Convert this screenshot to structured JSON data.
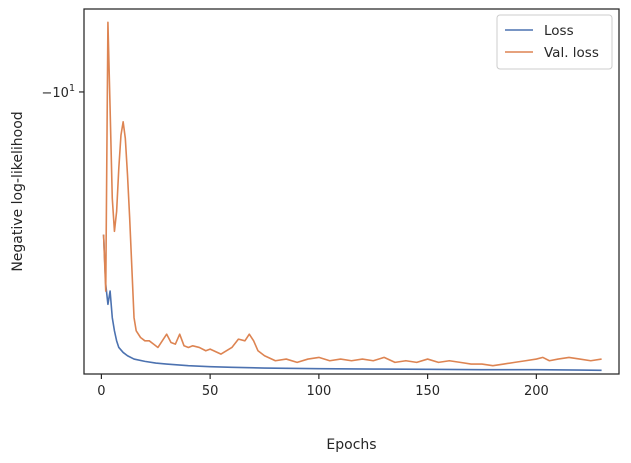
{
  "chart_data": {
    "type": "line",
    "xlabel": "Epochs",
    "ylabel": "Negative log-likelihood",
    "xlim": [
      -8,
      238
    ],
    "ylim": [
      -18.5,
      -7.5
    ],
    "y_scale": "symlog",
    "grid": false,
    "legend_position": "top-right",
    "x_ticks": [
      {
        "value": 0,
        "label": "0"
      },
      {
        "value": 50,
        "label": "50"
      },
      {
        "value": 100,
        "label": "100"
      },
      {
        "value": 150,
        "label": "150"
      },
      {
        "value": 200,
        "label": "200"
      }
    ],
    "y_ticks": [
      {
        "value": -10,
        "label_base": "−10",
        "label_exp": "1"
      }
    ],
    "series": [
      {
        "name": "Loss",
        "color": "#4c72b0",
        "x": [
          1,
          2,
          3,
          4,
          5,
          6,
          7,
          8,
          10,
          12,
          15,
          20,
          25,
          30,
          40,
          50,
          60,
          75,
          100,
          125,
          150,
          175,
          200,
          220,
          230
        ],
        "y": [
          -14.3,
          -15.8,
          -16.4,
          -16.0,
          -16.8,
          -17.2,
          -17.5,
          -17.7,
          -17.85,
          -17.95,
          -18.05,
          -18.12,
          -18.17,
          -18.2,
          -18.25,
          -18.28,
          -18.3,
          -18.32,
          -18.34,
          -18.35,
          -18.36,
          -18.37,
          -18.37,
          -18.38,
          -18.39
        ]
      },
      {
        "name": "Val. loss",
        "color": "#dd8452",
        "x": [
          1,
          2,
          3,
          4,
          5,
          6,
          7,
          8,
          9,
          10,
          11,
          12,
          13,
          14,
          15,
          16,
          18,
          20,
          22,
          24,
          26,
          28,
          30,
          32,
          34,
          36,
          38,
          40,
          42,
          45,
          48,
          50,
          55,
          60,
          63,
          66,
          68,
          70,
          72,
          75,
          80,
          85,
          90,
          95,
          100,
          105,
          110,
          115,
          120,
          125,
          130,
          135,
          140,
          145,
          150,
          155,
          160,
          165,
          170,
          175,
          180,
          185,
          190,
          195,
          200,
          203,
          206,
          210,
          215,
          220,
          225,
          230
        ],
        "y": [
          -14.3,
          -16.0,
          -7.9,
          -10.5,
          -13.2,
          -14.2,
          -13.6,
          -12.3,
          -11.3,
          -10.9,
          -11.4,
          -12.5,
          -13.8,
          -15.3,
          -16.8,
          -17.2,
          -17.4,
          -17.5,
          -17.5,
          -17.6,
          -17.7,
          -17.5,
          -17.3,
          -17.55,
          -17.6,
          -17.3,
          -17.65,
          -17.7,
          -17.65,
          -17.7,
          -17.8,
          -17.75,
          -17.9,
          -17.7,
          -17.45,
          -17.5,
          -17.3,
          -17.5,
          -17.8,
          -17.95,
          -18.1,
          -18.05,
          -18.15,
          -18.05,
          -18.0,
          -18.1,
          -18.05,
          -18.1,
          -18.05,
          -18.1,
          -18.0,
          -18.15,
          -18.1,
          -18.15,
          -18.05,
          -18.15,
          -18.1,
          -18.15,
          -18.2,
          -18.2,
          -18.25,
          -18.2,
          -18.15,
          -18.1,
          -18.05,
          -18.0,
          -18.1,
          -18.05,
          -18.0,
          -18.05,
          -18.1,
          -18.05
        ]
      }
    ]
  }
}
